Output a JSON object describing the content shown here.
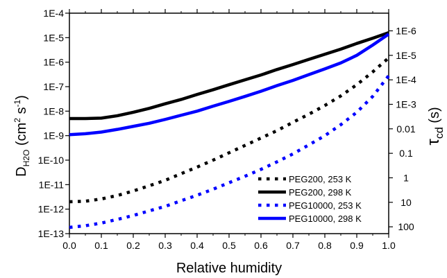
{
  "chart_data": {
    "type": "line",
    "title": "",
    "xlabel": "Relative humidity",
    "ylabel": {
      "base": "D",
      "subscript": "H2O",
      "unit_prefix": " (cm",
      "unit_exp1": "2",
      "unit_mid": " s",
      "unit_exp2": "-1",
      "unit_suffix": ")"
    },
    "y2label": {
      "base": "τ",
      "subscript": "cd",
      "unit": " (s)"
    },
    "xlim": [
      0.0,
      1.0
    ],
    "ylim": [
      1e-13,
      0.0001
    ],
    "yscale": "log",
    "x_tick_labels": [
      "0.0",
      "0.1",
      "0.2",
      "0.3",
      "0.4",
      "0.5",
      "0.6",
      "0.7",
      "0.8",
      "0.9",
      "1.0"
    ],
    "y_tick_labels": [
      "1E-4",
      "1E-5",
      "1E-6",
      "1E-7",
      "1E-8",
      "1E-9",
      "1E-10",
      "1E-11",
      "1E-12",
      "1E-13"
    ],
    "y2_tick_labels": [
      {
        "label": "1E-6",
        "d_value": 1.9e-05
      },
      {
        "label": "1E-5",
        "d_value": 1.9e-06
      },
      {
        "label": "1E-4",
        "d_value": 1.9e-07
      },
      {
        "label": "1E-3",
        "d_value": 1.9e-08
      },
      {
        "label": "0.01",
        "d_value": 1.9e-09
      },
      {
        "label": "0.1",
        "d_value": 1.9e-10
      },
      {
        "label": "1",
        "d_value": 1.9e-11
      },
      {
        "label": "10",
        "d_value": 1.9e-12
      },
      {
        "label": "100",
        "d_value": 1.9e-13
      }
    ],
    "legend": {
      "position": "bottom-right",
      "frame": false
    },
    "series": [
      {
        "name": "PEG200, 253 K",
        "color": "#000000",
        "style": "dotted",
        "x": [
          0.0,
          0.05,
          0.1,
          0.15,
          0.2,
          0.25,
          0.3,
          0.35,
          0.4,
          0.45,
          0.5,
          0.55,
          0.6,
          0.65,
          0.7,
          0.75,
          0.8,
          0.85,
          0.9,
          0.95,
          1.0
        ],
        "y": [
          2e-12,
          2.1e-12,
          2.6e-12,
          3.6e-12,
          5.5e-12,
          9e-12,
          1.5e-11,
          2.8e-11,
          5.2e-11,
          1e-10,
          2e-10,
          4e-10,
          8e-10,
          1.6e-09,
          3.5e-09,
          7.5e-09,
          1.7e-08,
          4.2e-08,
          1.2e-07,
          4e-07,
          1.5e-06
        ]
      },
      {
        "name": "PEG200, 298 K",
        "color": "#000000",
        "style": "solid",
        "x": [
          0.0,
          0.05,
          0.1,
          0.15,
          0.2,
          0.25,
          0.3,
          0.35,
          0.4,
          0.45,
          0.5,
          0.55,
          0.6,
          0.65,
          0.7,
          0.75,
          0.8,
          0.85,
          0.9,
          0.95,
          1.0
        ],
        "y": [
          5e-09,
          5e-09,
          5.2e-09,
          6.5e-09,
          9e-09,
          1.3e-08,
          2e-08,
          3e-08,
          4.8e-08,
          7.5e-08,
          1.2e-07,
          1.9e-07,
          3e-07,
          5e-07,
          8e-07,
          1.3e-06,
          2.1e-06,
          3.4e-06,
          5.8e-06,
          9.5e-06,
          1.6e-05
        ]
      },
      {
        "name": "PEG10000, 253 K",
        "color": "#0000ff",
        "style": "dotted",
        "x": [
          0.0,
          0.05,
          0.1,
          0.15,
          0.2,
          0.25,
          0.3,
          0.35,
          0.4,
          0.45,
          0.5,
          0.55,
          0.6,
          0.65,
          0.7,
          0.75,
          0.8,
          0.85,
          0.9,
          0.95,
          1.0
        ],
        "y": [
          1.8e-13,
          2.1e-13,
          2.7e-13,
          3.8e-13,
          5.5e-13,
          8.5e-13,
          1.3e-12,
          2.2e-12,
          3.7e-12,
          6.5e-12,
          1.2e-11,
          2.2e-11,
          4.2e-11,
          8.5e-11,
          1.8e-10,
          4.2e-10,
          1e-09,
          2.8e-09,
          9e-09,
          4e-08,
          2.8e-07
        ]
      },
      {
        "name": "PEG10000, 298 K",
        "color": "#0000ff",
        "style": "solid",
        "x": [
          0.0,
          0.05,
          0.1,
          0.15,
          0.2,
          0.25,
          0.3,
          0.35,
          0.4,
          0.45,
          0.5,
          0.55,
          0.6,
          0.65,
          0.7,
          0.75,
          0.8,
          0.85,
          0.9,
          0.95,
          1.0
        ],
        "y": [
          1.1e-09,
          1.2e-09,
          1.4e-09,
          1.8e-09,
          2.4e-09,
          3.2e-09,
          4.6e-09,
          6.8e-09,
          1e-08,
          1.6e-08,
          2.5e-08,
          4e-08,
          6.5e-08,
          1.1e-07,
          1.8e-07,
          3.1e-07,
          5.3e-07,
          9.3e-07,
          1.9e-06,
          5e-06,
          1.4e-05
        ]
      }
    ]
  }
}
